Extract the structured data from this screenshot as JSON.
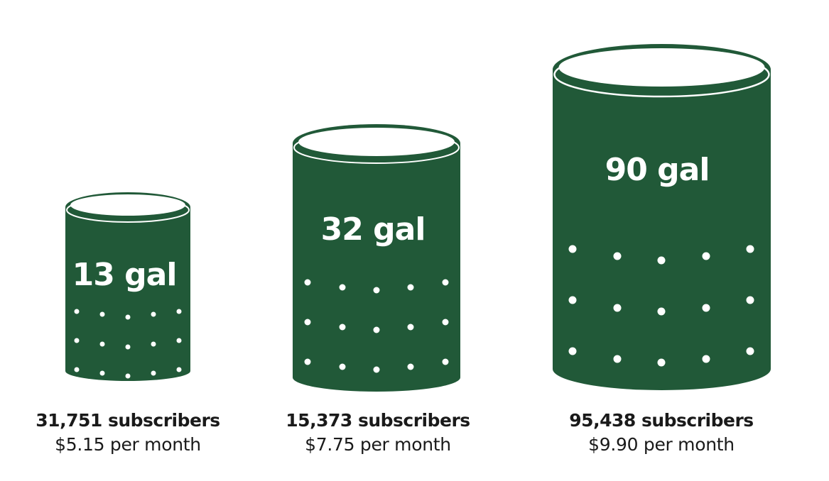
{
  "colors": {
    "can_fill": "#215938",
    "rim_fill": "#ffffff",
    "dot_fill": "#ffffff",
    "text": "#1a1a1a"
  },
  "cans": [
    {
      "id": "small",
      "size_label": "13 gal",
      "gallons": 13,
      "subscribers_label": "31,751 subscribers",
      "price_label": "$5.15 per month"
    },
    {
      "id": "medium",
      "size_label": "32 gal",
      "gallons": 32,
      "subscribers_label": "15,373 subscribers",
      "price_label": "$7.75 per month"
    },
    {
      "id": "large",
      "size_label": "90 gal",
      "gallons": 90,
      "subscribers_label": "95,438 subscribers",
      "price_label": "$9.90 per month"
    }
  ]
}
